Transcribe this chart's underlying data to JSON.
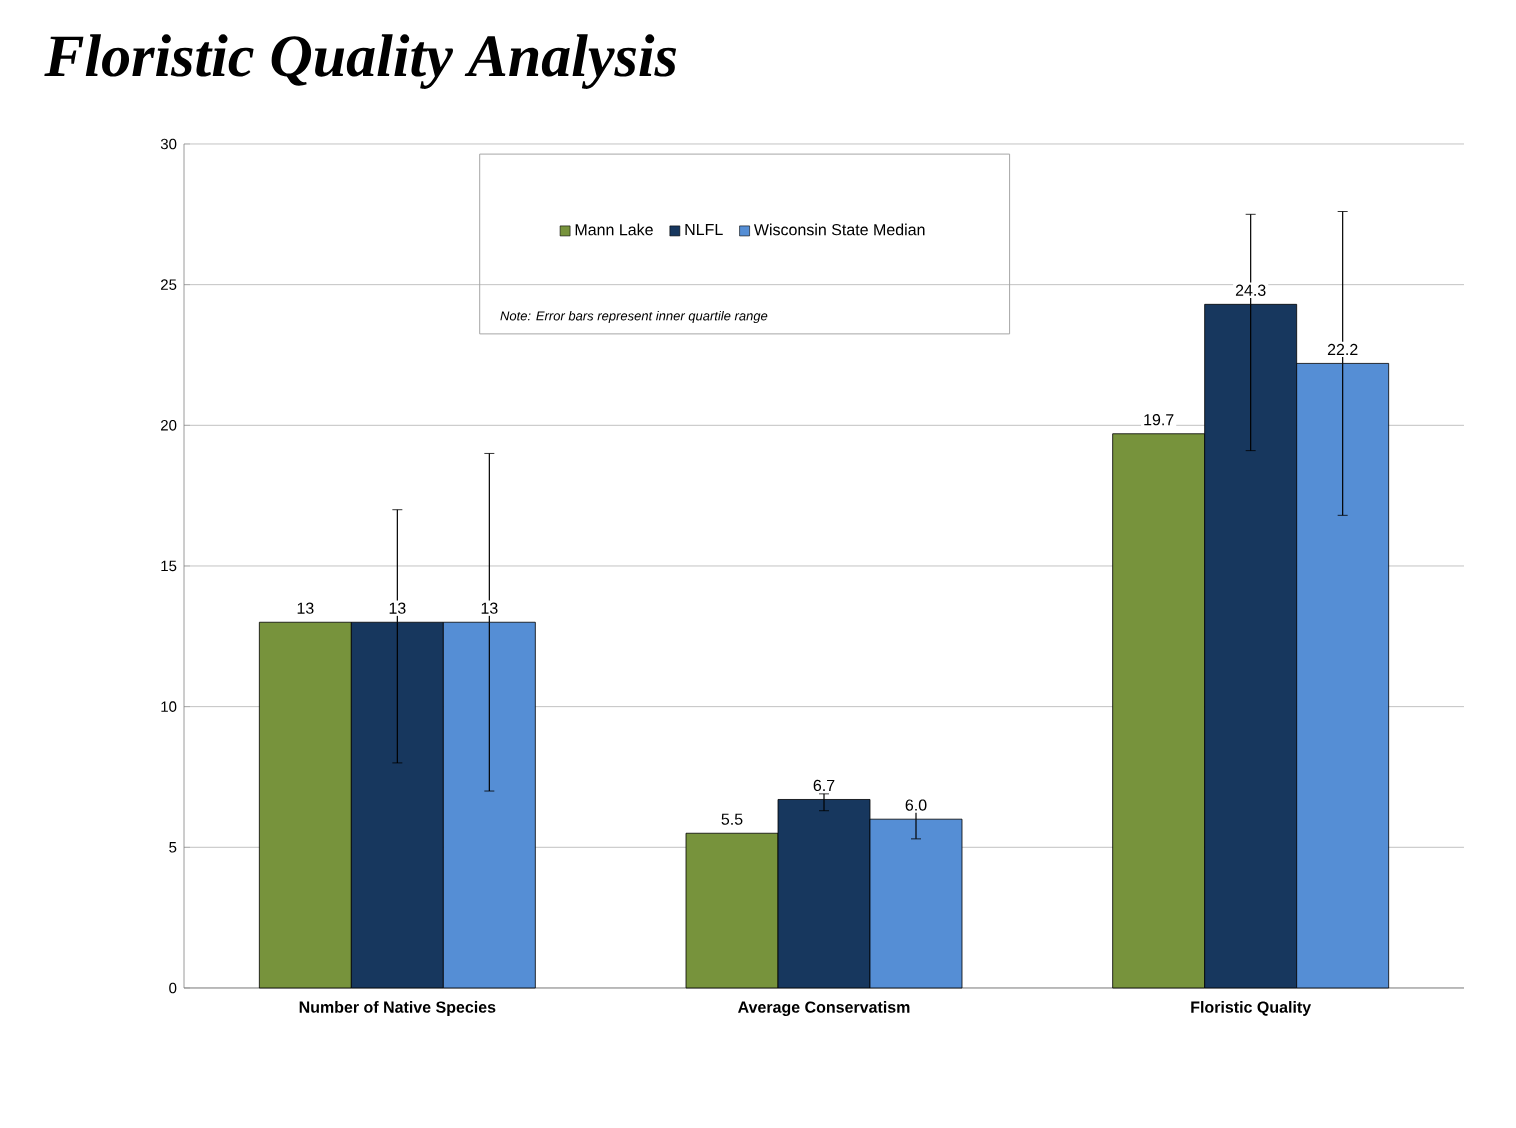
{
  "chart_data": {
    "type": "bar",
    "title": "Floristic Quality Analysis",
    "categories": [
      "Number of Native Species",
      "Average Conservatism",
      "Floristic Quality"
    ],
    "series": [
      {
        "name": "Mann Lake",
        "color": "#77933c",
        "values": [
          13,
          5.5,
          19.7
        ],
        "value_labels": [
          "13",
          "5.5",
          "19.7"
        ]
      },
      {
        "name": "NLFL",
        "color": "#17375e",
        "values": [
          13,
          6.7,
          24.3
        ],
        "value_labels": [
          "13",
          "6.7",
          "24.3"
        ],
        "errors": [
          [
            8,
            17
          ],
          [
            6.3,
            6.9
          ],
          [
            19.1,
            27.5
          ]
        ]
      },
      {
        "name": "Wisconsin State Median",
        "color": "#558ed5",
        "values": [
          13,
          6.0,
          22.2
        ],
        "value_labels": [
          "13",
          "6.0",
          "22.2"
        ],
        "errors": [
          [
            7,
            19
          ],
          [
            5.3,
            6.5
          ],
          [
            16.8,
            27.6
          ]
        ]
      }
    ],
    "ylim": [
      0,
      30
    ],
    "yticks": [
      0,
      5,
      10,
      15,
      20,
      25,
      30
    ],
    "grid": "y",
    "legend": "top",
    "annotations": [
      "Note: Error bars represent inner quartile range"
    ]
  }
}
